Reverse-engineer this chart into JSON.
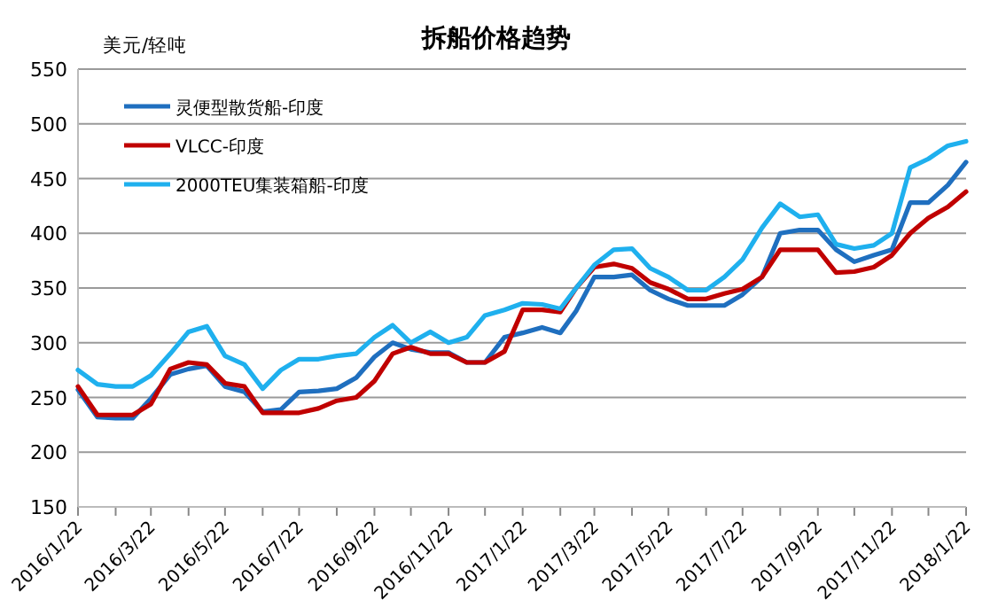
{
  "chart_data": {
    "type": "line",
    "title": "拆船价格趋势",
    "ylabel": "美元/轻吨",
    "x": [
      "2016-01-22",
      "2016-02-07",
      "2016-02-22",
      "2016-03-07",
      "2016-03-22",
      "2016-04-07",
      "2016-04-22",
      "2016-05-07",
      "2016-05-22",
      "2016-06-07",
      "2016-06-22",
      "2016-07-07",
      "2016-07-22",
      "2016-08-07",
      "2016-08-22",
      "2016-09-07",
      "2016-09-22",
      "2016-10-07",
      "2016-10-22",
      "2016-11-07",
      "2016-11-22",
      "2016-12-07",
      "2016-12-22",
      "2017-01-07",
      "2017-01-22",
      "2017-02-07",
      "2017-02-22",
      "2017-03-07",
      "2017-03-22",
      "2017-04-07",
      "2017-04-22",
      "2017-05-07",
      "2017-05-22",
      "2017-06-07",
      "2017-06-22",
      "2017-07-07",
      "2017-07-22",
      "2017-08-07",
      "2017-08-22",
      "2017-09-07",
      "2017-09-22",
      "2017-10-07",
      "2017-10-22",
      "2017-11-07",
      "2017-11-22",
      "2017-12-07",
      "2017-12-22",
      "2018-01-07",
      "2018-01-22"
    ],
    "series": [
      {
        "name": "灵便型散货船-印度",
        "color": "#1f6fbf",
        "values": [
          257,
          232,
          231,
          231,
          249,
          271,
          276,
          279,
          260,
          255,
          237,
          239,
          255,
          256,
          258,
          268,
          287,
          300,
          294,
          291,
          291,
          282,
          282,
          305,
          309,
          314,
          309,
          329,
          360,
          360,
          362,
          348,
          340,
          334,
          334,
          334,
          344,
          360,
          400,
          403,
          403,
          385,
          374,
          380,
          385,
          428,
          428,
          444,
          465
        ]
      },
      {
        "name": "VLCC-印度",
        "color": "#c00000",
        "values": [
          260,
          234,
          234,
          234,
          244,
          276,
          282,
          280,
          263,
          260,
          236,
          236,
          236,
          240,
          247,
          250,
          265,
          290,
          296,
          290,
          290,
          282,
          282,
          292,
          330,
          330,
          328,
          350,
          369,
          372,
          368,
          355,
          349,
          340,
          340,
          345,
          349,
          360,
          385,
          385,
          385,
          364,
          365,
          369,
          380,
          400,
          414,
          424,
          438
        ]
      },
      {
        "name": "2000TEU集装箱船-印度",
        "color": "#1fb0ee",
        "values": [
          275,
          262,
          260,
          260,
          270,
          290,
          310,
          315,
          288,
          280,
          258,
          275,
          285,
          285,
          288,
          290,
          305,
          316,
          300,
          310,
          300,
          305,
          325,
          330,
          336,
          335,
          331,
          350,
          371,
          385,
          386,
          368,
          360,
          348,
          348,
          360,
          376,
          405,
          427,
          415,
          417,
          390,
          386,
          389,
          400,
          460,
          468,
          480,
          484
        ]
      }
    ],
    "xlim": [
      "2016-01-22",
      "2018-01-22"
    ],
    "xticks": [
      {
        "value": "2016-01-22",
        "label": "2016/1/22"
      },
      {
        "value": "2016-02-22",
        "label": null
      },
      {
        "value": "2016-03-22",
        "label": "2016/3/22"
      },
      {
        "value": "2016-04-22",
        "label": null
      },
      {
        "value": "2016-05-22",
        "label": "2016/5/22"
      },
      {
        "value": "2016-06-22",
        "label": null
      },
      {
        "value": "2016-07-22",
        "label": "2016/7/22"
      },
      {
        "value": "2016-08-22",
        "label": null
      },
      {
        "value": "2016-09-22",
        "label": "2016/9/22"
      },
      {
        "value": "2016-10-22",
        "label": null
      },
      {
        "value": "2016-11-22",
        "label": "2016/11/22"
      },
      {
        "value": "2016-12-22",
        "label": null
      },
      {
        "value": "2017-01-22",
        "label": "2017/1/22"
      },
      {
        "value": "2017-02-22",
        "label": null
      },
      {
        "value": "2017-03-22",
        "label": "2017/3/22"
      },
      {
        "value": "2017-04-22",
        "label": null
      },
      {
        "value": "2017-05-22",
        "label": "2017/5/22"
      },
      {
        "value": "2017-06-22",
        "label": null
      },
      {
        "value": "2017-07-22",
        "label": "2017/7/22"
      },
      {
        "value": "2017-08-22",
        "label": null
      },
      {
        "value": "2017-09-22",
        "label": "2017/9/22"
      },
      {
        "value": "2017-10-22",
        "label": null
      },
      {
        "value": "2017-11-22",
        "label": "2017/11/22"
      },
      {
        "value": "2017-12-22",
        "label": null
      },
      {
        "value": "2018-01-22",
        "label": "2018/1/22"
      }
    ],
    "ylim": [
      150,
      550
    ],
    "yticks": [
      150,
      200,
      250,
      300,
      350,
      400,
      450,
      500,
      550
    ],
    "grid": "y",
    "legend": "top left",
    "marker": "none",
    "line_style": "solid"
  }
}
